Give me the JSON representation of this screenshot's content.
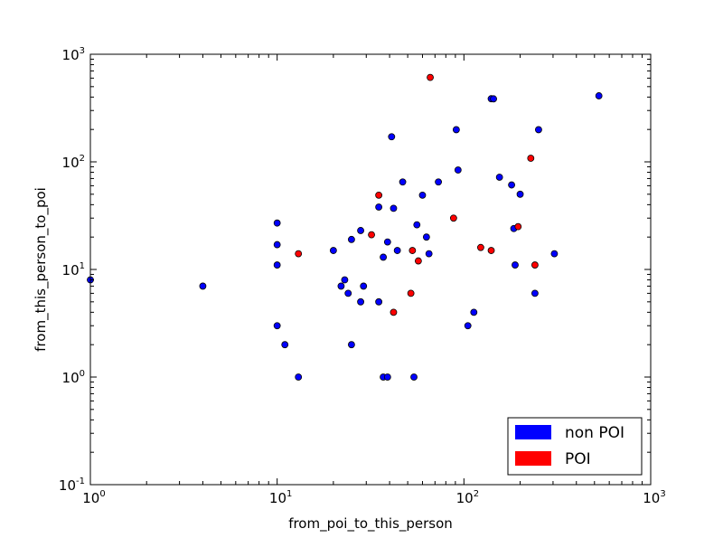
{
  "chart_data": {
    "type": "scatter",
    "title": "",
    "xlabel": "from_poi_to_this_person",
    "ylabel": "from_this_person_to_poi",
    "xscale": "log",
    "yscale": "log",
    "xlim": [
      1,
      1000
    ],
    "ylim": [
      0.1,
      1000
    ],
    "x_ticks": [
      {
        "base": "10",
        "exp": "0",
        "value": 1
      },
      {
        "base": "10",
        "exp": "1",
        "value": 10
      },
      {
        "base": "10",
        "exp": "2",
        "value": 100
      },
      {
        "base": "10",
        "exp": "3",
        "value": 1000
      }
    ],
    "y_ticks": [
      {
        "base": "10",
        "exp": "-1",
        "value": 0.1
      },
      {
        "base": "10",
        "exp": "0",
        "value": 1
      },
      {
        "base": "10",
        "exp": "1",
        "value": 10
      },
      {
        "base": "10",
        "exp": "2",
        "value": 100
      },
      {
        "base": "10",
        "exp": "3",
        "value": 1000
      }
    ],
    "grid": false,
    "legend_position": "lower-right",
    "series": [
      {
        "name": "non POI",
        "color": "#0000ff",
        "points": [
          [
            1,
            8
          ],
          [
            4,
            7
          ],
          [
            10,
            27
          ],
          [
            10,
            17
          ],
          [
            10,
            11
          ],
          [
            10,
            3
          ],
          [
            11,
            2
          ],
          [
            13,
            1
          ],
          [
            20,
            15
          ],
          [
            22,
            7
          ],
          [
            23,
            8
          ],
          [
            24,
            6
          ],
          [
            25,
            19
          ],
          [
            25,
            2
          ],
          [
            28,
            23
          ],
          [
            28,
            5
          ],
          [
            29,
            7
          ],
          [
            35,
            38
          ],
          [
            35,
            5
          ],
          [
            37,
            13
          ],
          [
            37,
            1
          ],
          [
            39,
            18
          ],
          [
            39,
            1
          ],
          [
            41,
            171
          ],
          [
            42,
            37
          ],
          [
            44,
            15
          ],
          [
            47,
            65
          ],
          [
            56,
            26
          ],
          [
            60,
            49
          ],
          [
            63,
            20
          ],
          [
            65,
            14
          ],
          [
            54,
            1
          ],
          [
            73,
            65
          ],
          [
            91,
            199
          ],
          [
            93,
            84
          ],
          [
            105,
            3
          ],
          [
            113,
            4
          ],
          [
            140,
            386
          ],
          [
            144,
            385
          ],
          [
            155,
            72
          ],
          [
            180,
            61
          ],
          [
            185,
            24
          ],
          [
            188,
            11
          ],
          [
            200,
            50
          ],
          [
            240,
            6
          ],
          [
            251,
            199
          ],
          [
            305,
            14
          ],
          [
            528,
            411
          ]
        ]
      },
      {
        "name": "POI",
        "color": "#ff0000",
        "points": [
          [
            13,
            14
          ],
          [
            32,
            21
          ],
          [
            35,
            49
          ],
          [
            42,
            4
          ],
          [
            52,
            6
          ],
          [
            53,
            15
          ],
          [
            57,
            12
          ],
          [
            66,
            609
          ],
          [
            88,
            30
          ],
          [
            123,
            16
          ],
          [
            140,
            15
          ],
          [
            195,
            25
          ],
          [
            228,
            108
          ],
          [
            240,
            11
          ]
        ]
      }
    ]
  }
}
